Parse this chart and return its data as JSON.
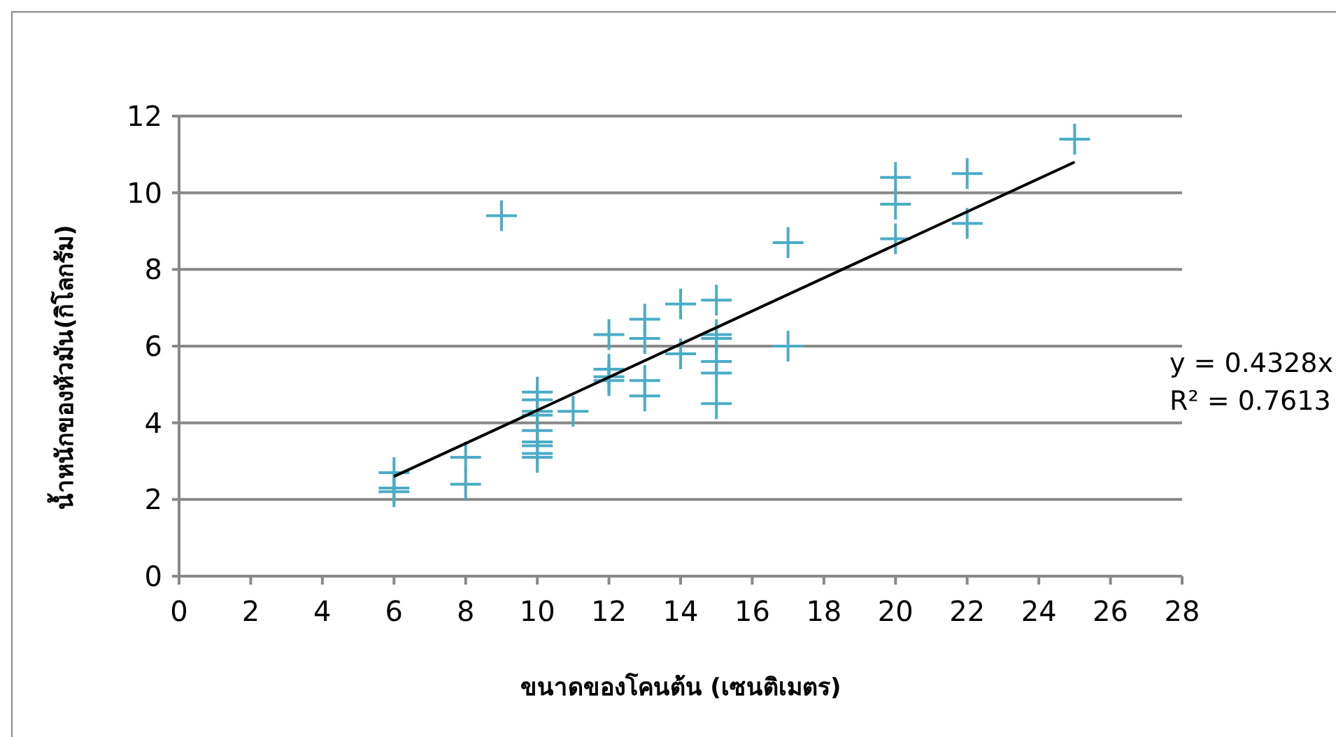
{
  "chart_data": {
    "type": "scatter",
    "xlabel": "ขนาดของโคนต้น (เซนติเมตร)",
    "ylabel": "น้ำหนักของหัวมัน(กิโลกรัม)",
    "xlim": [
      0,
      28
    ],
    "ylim": [
      0,
      12
    ],
    "xticks": [
      0,
      2,
      4,
      6,
      8,
      10,
      12,
      14,
      16,
      18,
      20,
      22,
      24,
      26,
      28
    ],
    "yticks": [
      0,
      2,
      4,
      6,
      8,
      10,
      12
    ],
    "grid": "y",
    "marker": "cross",
    "series": [
      {
        "color": "#4bacc6",
        "x": [
          6,
          6,
          6,
          8,
          8,
          9,
          10,
          10,
          10,
          10,
          10,
          10,
          10,
          10,
          10,
          11,
          12,
          12,
          12,
          12,
          13,
          13,
          13,
          13,
          14,
          14,
          15,
          15,
          15,
          15,
          15,
          15,
          17,
          17,
          20,
          20,
          20,
          22,
          22,
          25
        ],
        "values": [
          2.7,
          2.3,
          2.2,
          3.1,
          2.4,
          9.4,
          4.8,
          4.6,
          4.3,
          4.2,
          3.8,
          3.5,
          3.4,
          3.2,
          3.1,
          4.3,
          6.3,
          5.4,
          5.2,
          5.1,
          6.7,
          6.2,
          5.1,
          4.7,
          7.1,
          5.8,
          7.2,
          6.3,
          6.2,
          5.6,
          5.3,
          4.5,
          8.7,
          6.0,
          10.4,
          9.7,
          8.8,
          10.5,
          9.2,
          11.4
        ]
      },
      {
        "type": "line",
        "color": "#000000",
        "x": [
          6,
          25
        ],
        "values": [
          2.6,
          10.8
        ],
        "marker": "none"
      }
    ],
    "annotations": [
      "y = 0.4328x",
      "R² = 0.7613"
    ]
  }
}
